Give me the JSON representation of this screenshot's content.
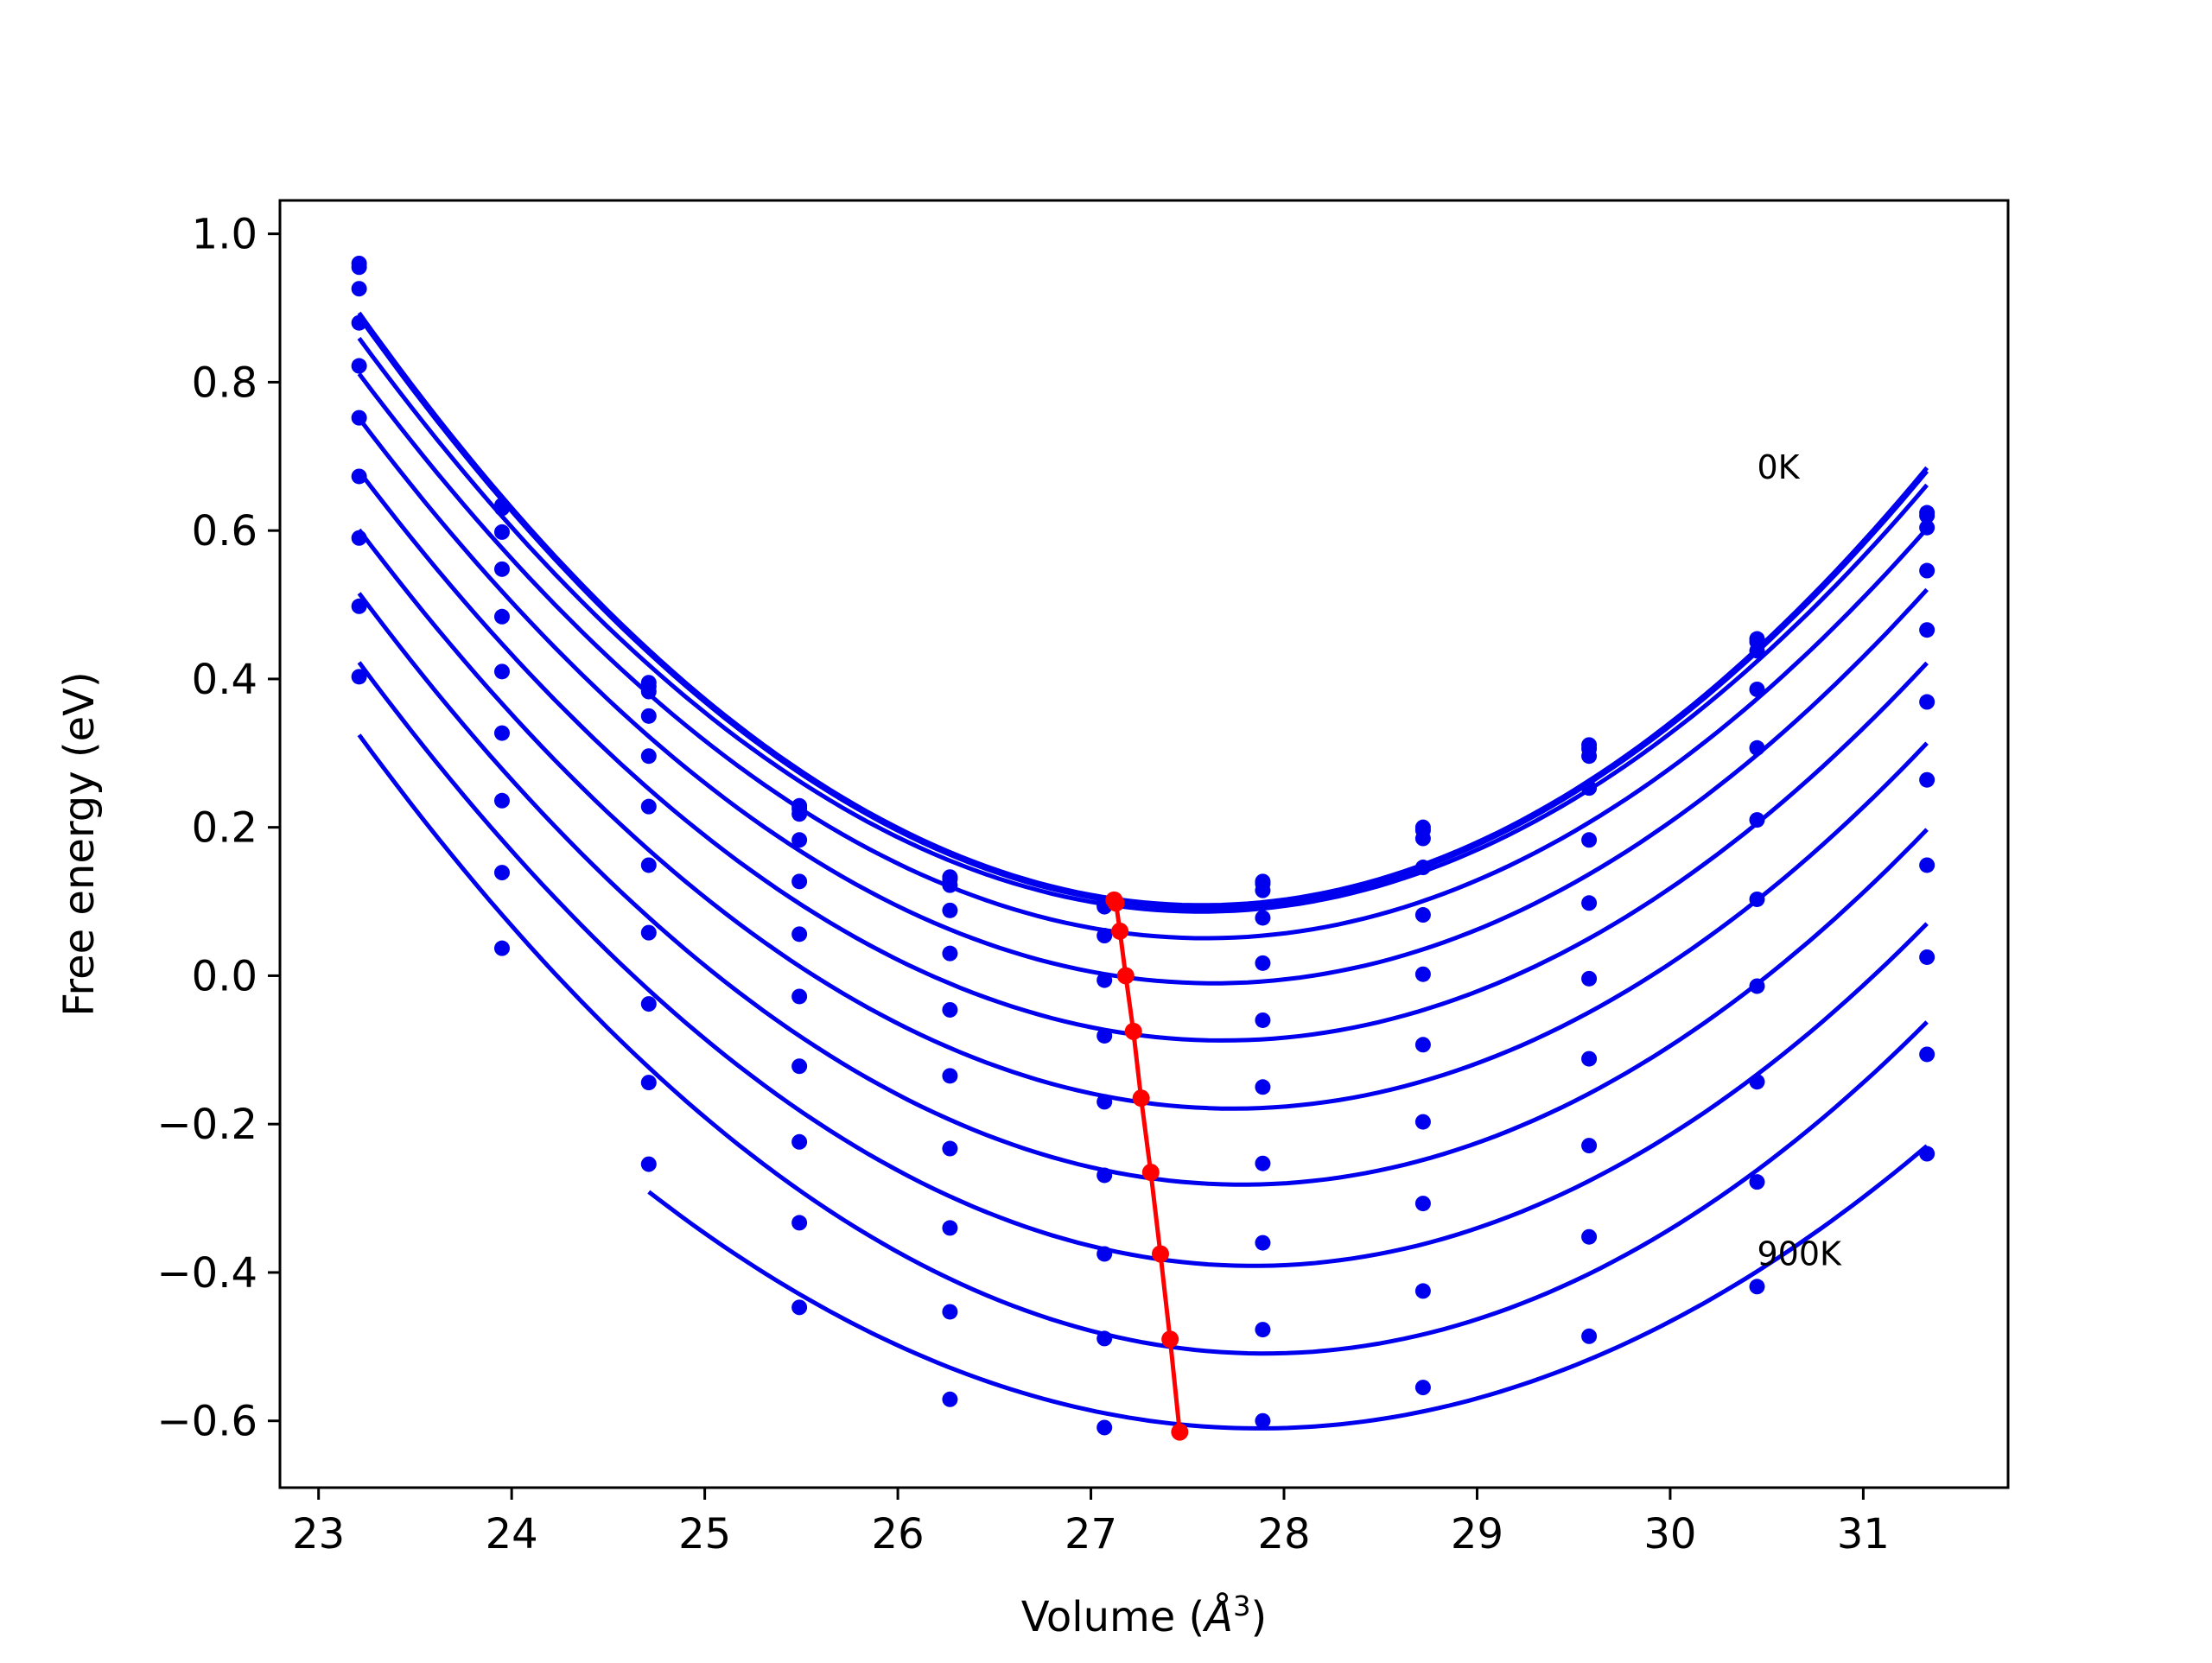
{
  "chart_data": {
    "type": "line",
    "xlabel": "Volume (",
    "xlabel_unit": "Å",
    "xlabel_exp": "3",
    "xlabel_end": ")",
    "ylabel": "Free energy (eV)",
    "xlim": [
      22.8,
      31.75
    ],
    "ylim": [
      -0.69,
      1.045
    ],
    "xticks": [
      23,
      24,
      25,
      26,
      27,
      28,
      29,
      30,
      31
    ],
    "xtick_labels": [
      "23",
      "24",
      "25",
      "26",
      "27",
      "28",
      "29",
      "30",
      "31"
    ],
    "yticks": [
      1.0,
      0.8,
      0.6,
      0.4,
      0.2,
      0.0,
      -0.2,
      -0.4,
      -0.6
    ],
    "ytick_labels": [
      "1.0",
      "0.8",
      "0.6",
      "0.4",
      "0.2",
      "0.0",
      "−0.2",
      "−0.4",
      "−0.6"
    ],
    "grid": false,
    "legend": "none",
    "colors": {
      "curves": "#0000ee",
      "equilibrium": "#ff0000",
      "frame": "#000000"
    },
    "annotations": [
      {
        "text": "0K",
        "x": 30.45,
        "y": 0.67
      },
      {
        "text": "900K",
        "x": 30.45,
        "y": -0.39
      }
    ],
    "x": [
      23.21,
      23.95,
      24.71,
      25.49,
      26.27,
      27.07,
      27.89,
      28.72,
      29.58,
      30.45,
      31.33
    ],
    "series": [
      {
        "values": [
          0.96,
          0.634,
          0.395,
          0.229,
          0.133,
          0.098,
          0.127,
          0.2,
          0.311,
          0.454,
          0.624
        ]
      },
      {
        "values": [
          0.955,
          0.63,
          0.39,
          0.225,
          0.13,
          0.096,
          0.124,
          0.196,
          0.306,
          0.45,
          0.62
        ]
      },
      {
        "values": [
          0.926,
          0.598,
          0.383,
          0.218,
          0.122,
          0.093,
          0.115,
          0.185,
          0.296,
          0.438,
          0.604
        ]
      },
      {
        "values": [
          0.88,
          0.548,
          0.35,
          0.183,
          0.088,
          0.054,
          0.078,
          0.146,
          0.253,
          0.386,
          0.546
        ]
      },
      {
        "values": [
          0.822,
          0.484,
          0.296,
          0.127,
          0.03,
          -0.006,
          0.017,
          0.082,
          0.183,
          0.307,
          0.466
        ]
      },
      {
        "values": [
          0.752,
          0.41,
          0.228,
          0.056,
          -0.046,
          -0.081,
          -0.06,
          0.002,
          0.098,
          0.21,
          0.369
        ]
      },
      {
        "values": [
          0.673,
          0.327,
          0.149,
          -0.028,
          -0.135,
          -0.17,
          -0.15,
          -0.093,
          -0.004,
          0.103,
          0.264
        ]
      },
      {
        "values": [
          0.59,
          0.236,
          0.058,
          -0.122,
          -0.233,
          -0.269,
          -0.253,
          -0.197,
          -0.112,
          -0.014,
          0.149
        ]
      },
      {
        "values": [
          0.498,
          0.139,
          -0.038,
          -0.224,
          -0.34,
          -0.375,
          -0.36,
          -0.307,
          -0.229,
          -0.143,
          0.025
        ]
      },
      {
        "values": [
          0.403,
          0.037,
          -0.144,
          -0.333,
          -0.453,
          -0.489,
          -0.477,
          -0.425,
          -0.352,
          -0.278,
          -0.106
        ]
      },
      {
        "values": [
          null,
          null,
          -0.254,
          -0.447,
          -0.571,
          -0.609,
          -0.6,
          -0.555,
          -0.486,
          -0.419,
          -0.24
        ]
      }
    ],
    "minimum_line": {
      "x": [
        27.12,
        27.13,
        27.15,
        27.18,
        27.22,
        27.26,
        27.31,
        27.36,
        27.41,
        27.46
      ],
      "y": [
        0.102,
        0.098,
        0.06,
        0.0,
        -0.075,
        -0.165,
        -0.265,
        -0.375,
        -0.49,
        -0.615
      ]
    }
  }
}
